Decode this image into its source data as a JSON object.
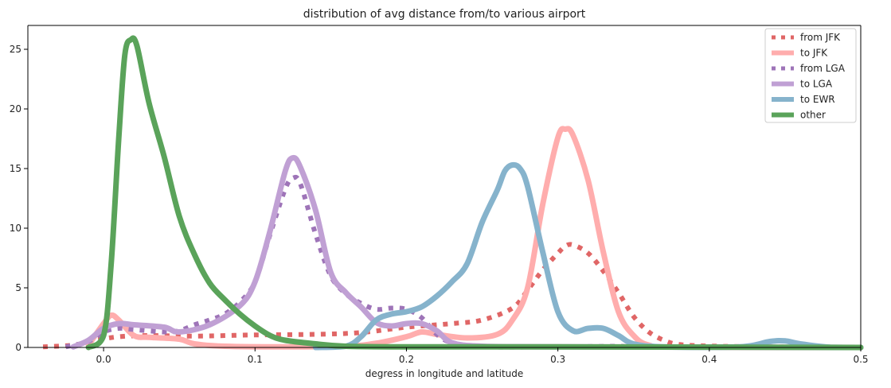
{
  "chart_data": {
    "type": "line",
    "title": "distribution of avg distance from/to various airport",
    "xlabel": "degress in longitude and latitude",
    "ylabel": "",
    "xlim": [
      -0.05,
      0.5
    ],
    "ylim": [
      0,
      27
    ],
    "xticks": [
      0.0,
      0.1,
      0.2,
      0.3,
      0.4,
      0.5
    ],
    "xtick_labels": [
      "0.0",
      "0.1",
      "0.2",
      "0.3",
      "0.4",
      "0.5"
    ],
    "yticks": [
      0,
      5,
      10,
      15,
      20,
      25
    ],
    "ytick_labels": [
      "0",
      "5",
      "10",
      "15",
      "20",
      "25"
    ],
    "grid": false,
    "legend_position": "top-right",
    "series": [
      {
        "name": "from JFK",
        "color": "#e06666",
        "style": "dotted",
        "points": [
          [
            -0.04,
            0.05
          ],
          [
            -0.02,
            0.2
          ],
          [
            -0.005,
            0.6
          ],
          [
            0.01,
            0.9
          ],
          [
            0.03,
            1.0
          ],
          [
            0.06,
            0.95
          ],
          [
            0.1,
            1.05
          ],
          [
            0.14,
            1.1
          ],
          [
            0.17,
            1.25
          ],
          [
            0.2,
            1.7
          ],
          [
            0.23,
            2.0
          ],
          [
            0.25,
            2.3
          ],
          [
            0.27,
            3.3
          ],
          [
            0.28,
            4.8
          ],
          [
            0.29,
            6.5
          ],
          [
            0.3,
            7.9
          ],
          [
            0.305,
            8.5
          ],
          [
            0.31,
            8.6
          ],
          [
            0.32,
            7.9
          ],
          [
            0.33,
            6.4
          ],
          [
            0.34,
            4.6
          ],
          [
            0.35,
            2.6
          ],
          [
            0.36,
            1.3
          ],
          [
            0.37,
            0.6
          ],
          [
            0.38,
            0.25
          ],
          [
            0.4,
            0.12
          ],
          [
            0.44,
            0.05
          ],
          [
            0.5,
            0.02
          ]
        ]
      },
      {
        "name": "to JFK",
        "color": "#ffadad",
        "style": "solid",
        "points": [
          [
            -0.01,
            0.2
          ],
          [
            0.0,
            2.0
          ],
          [
            0.005,
            2.7
          ],
          [
            0.01,
            2.3
          ],
          [
            0.02,
            1.0
          ],
          [
            0.03,
            0.85
          ],
          [
            0.05,
            0.7
          ],
          [
            0.06,
            0.3
          ],
          [
            0.08,
            0.1
          ],
          [
            0.12,
            0.05
          ],
          [
            0.16,
            0.1
          ],
          [
            0.18,
            0.35
          ],
          [
            0.2,
            0.9
          ],
          [
            0.21,
            1.3
          ],
          [
            0.22,
            1.1
          ],
          [
            0.24,
            0.8
          ],
          [
            0.26,
            1.1
          ],
          [
            0.27,
            2.3
          ],
          [
            0.28,
            5.0
          ],
          [
            0.29,
            12.0
          ],
          [
            0.3,
            17.6
          ],
          [
            0.305,
            18.3
          ],
          [
            0.31,
            17.8
          ],
          [
            0.32,
            14.0
          ],
          [
            0.33,
            8.0
          ],
          [
            0.34,
            3.0
          ],
          [
            0.35,
            1.0
          ],
          [
            0.36,
            0.2
          ],
          [
            0.38,
            0.03
          ],
          [
            0.5,
            0.0
          ]
        ]
      },
      {
        "name": "from LGA",
        "color": "#9e74b8",
        "style": "dotted",
        "points": [
          [
            -0.025,
            0.05
          ],
          [
            -0.01,
            0.5
          ],
          [
            0.0,
            1.3
          ],
          [
            0.01,
            1.6
          ],
          [
            0.02,
            1.5
          ],
          [
            0.04,
            1.3
          ],
          [
            0.05,
            1.4
          ],
          [
            0.06,
            1.9
          ],
          [
            0.07,
            2.3
          ],
          [
            0.08,
            2.8
          ],
          [
            0.09,
            3.8
          ],
          [
            0.1,
            5.5
          ],
          [
            0.11,
            9.5
          ],
          [
            0.12,
            13.3
          ],
          [
            0.125,
            14.2
          ],
          [
            0.13,
            13.7
          ],
          [
            0.14,
            9.5
          ],
          [
            0.15,
            6.0
          ],
          [
            0.16,
            4.5
          ],
          [
            0.17,
            3.7
          ],
          [
            0.18,
            3.2
          ],
          [
            0.19,
            3.3
          ],
          [
            0.2,
            3.2
          ],
          [
            0.21,
            2.5
          ],
          [
            0.22,
            1.1
          ],
          [
            0.23,
            0.4
          ],
          [
            0.25,
            0.05
          ],
          [
            0.3,
            0.05
          ],
          [
            0.34,
            0.1
          ],
          [
            0.36,
            0.05
          ],
          [
            0.5,
            0.0
          ]
        ]
      },
      {
        "name": "to LGA",
        "color": "#c0a0d4",
        "style": "solid",
        "points": [
          [
            -0.02,
            0.05
          ],
          [
            -0.01,
            0.6
          ],
          [
            0.0,
            1.6
          ],
          [
            0.01,
            2.0
          ],
          [
            0.02,
            1.9
          ],
          [
            0.04,
            1.7
          ],
          [
            0.05,
            1.3
          ],
          [
            0.07,
            1.9
          ],
          [
            0.09,
            3.5
          ],
          [
            0.1,
            5.5
          ],
          [
            0.11,
            9.8
          ],
          [
            0.12,
            14.8
          ],
          [
            0.125,
            15.9
          ],
          [
            0.13,
            15.1
          ],
          [
            0.14,
            11.5
          ],
          [
            0.15,
            6.3
          ],
          [
            0.16,
            4.6
          ],
          [
            0.17,
            3.4
          ],
          [
            0.18,
            2.1
          ],
          [
            0.19,
            1.8
          ],
          [
            0.2,
            2.0
          ],
          [
            0.21,
            2.0
          ],
          [
            0.22,
            1.4
          ],
          [
            0.23,
            0.4
          ],
          [
            0.25,
            0.1
          ],
          [
            0.3,
            0.05
          ],
          [
            0.5,
            0.0
          ]
        ]
      },
      {
        "name": "to EWR",
        "color": "#86b3cc",
        "style": "solid",
        "points": [
          [
            0.14,
            0.0
          ],
          [
            0.16,
            0.1
          ],
          [
            0.17,
            0.9
          ],
          [
            0.18,
            2.3
          ],
          [
            0.19,
            2.8
          ],
          [
            0.2,
            3.0
          ],
          [
            0.21,
            3.4
          ],
          [
            0.22,
            4.3
          ],
          [
            0.23,
            5.5
          ],
          [
            0.24,
            7.0
          ],
          [
            0.25,
            10.5
          ],
          [
            0.26,
            13.2
          ],
          [
            0.265,
            14.8
          ],
          [
            0.27,
            15.3
          ],
          [
            0.275,
            15.0
          ],
          [
            0.28,
            13.5
          ],
          [
            0.29,
            8.0
          ],
          [
            0.3,
            3.0
          ],
          [
            0.31,
            1.4
          ],
          [
            0.32,
            1.6
          ],
          [
            0.33,
            1.6
          ],
          [
            0.34,
            1.0
          ],
          [
            0.35,
            0.3
          ],
          [
            0.37,
            0.05
          ],
          [
            0.42,
            0.05
          ],
          [
            0.44,
            0.5
          ],
          [
            0.45,
            0.55
          ],
          [
            0.46,
            0.3
          ],
          [
            0.48,
            0.02
          ],
          [
            0.5,
            0.0
          ]
        ]
      },
      {
        "name": "other",
        "color": "#5aa35a",
        "style": "solid",
        "points": [
          [
            -0.01,
            0.0
          ],
          [
            0.0,
            1.0
          ],
          [
            0.005,
            7.0
          ],
          [
            0.01,
            17.5
          ],
          [
            0.014,
            24.5
          ],
          [
            0.018,
            25.8
          ],
          [
            0.022,
            25.3
          ],
          [
            0.03,
            20.5
          ],
          [
            0.04,
            16.0
          ],
          [
            0.05,
            11.0
          ],
          [
            0.06,
            7.8
          ],
          [
            0.07,
            5.4
          ],
          [
            0.08,
            4.0
          ],
          [
            0.09,
            2.8
          ],
          [
            0.1,
            1.8
          ],
          [
            0.11,
            1.0
          ],
          [
            0.12,
            0.6
          ],
          [
            0.14,
            0.3
          ],
          [
            0.16,
            0.1
          ],
          [
            0.2,
            0.05
          ],
          [
            0.3,
            0.05
          ],
          [
            0.5,
            0.0
          ]
        ]
      }
    ]
  }
}
